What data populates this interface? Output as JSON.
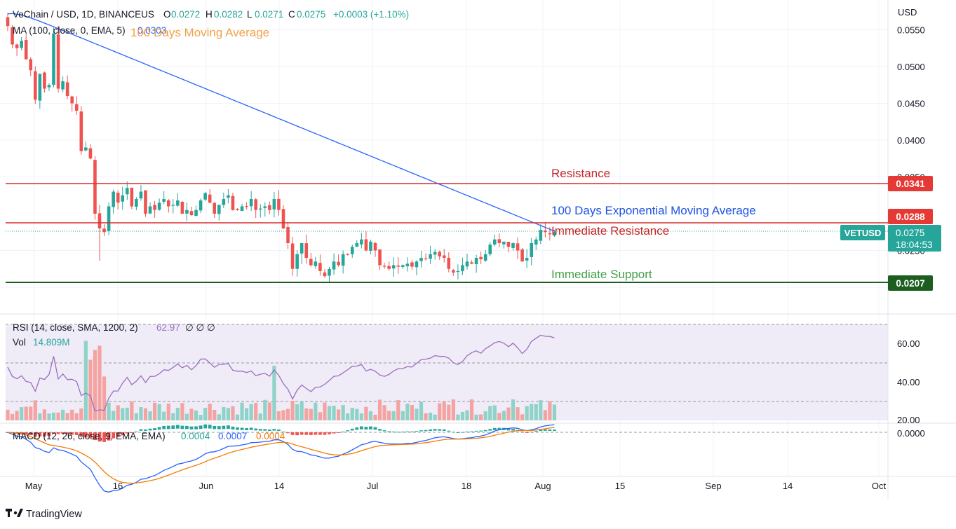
{
  "header": {
    "symbol": "VeChain / USD, 1D, BINANCEUS",
    "o_label": "O",
    "o_value": "0.0272",
    "h_label": "H",
    "h_value": "0.0282",
    "l_label": "L",
    "l_value": "0.0271",
    "c_label": "C",
    "c_value": "0.0275",
    "change": "+0.0003 (+1.10%)",
    "ma_label": "MA (100, close, 0, EMA, 5)",
    "ma_value": "0.0303",
    "ma_annotation": "100 Days Moving Average"
  },
  "currency": "USD",
  "annotations": {
    "resistance": "Resistance",
    "ema": "100 Days Exponential Moving Average",
    "immediate_resistance": "Immediate Resistance",
    "immediate_support": "Immediate Support"
  },
  "price_badges": {
    "resistance": "0.0341",
    "immediate_resistance": "0.0288",
    "support": "0.0207",
    "ticker": "VETUSD",
    "last": "0.0275",
    "countdown": "18:04:53"
  },
  "colors": {
    "up": "#26a69a",
    "down": "#ef5350",
    "ema": "#2962ff",
    "resistance": "#d32f2f",
    "support": "#1b5e20",
    "rsi": "#9c6fbf",
    "macd": "#2962ff",
    "signal": "#f57c00",
    "ann_resistance": "#c62828",
    "ann_ema": "#1e53e5",
    "ann_support": "#43a047",
    "ann_orange": "#f2a14a"
  },
  "rsi": {
    "label": "RSI (14, close, SMA, 1200, 2)",
    "value": "62.97",
    "extra": "∅ ∅ ∅",
    "vol_label": "Vol",
    "vol_value": "14.809M",
    "ticks": [
      "60.00",
      "40.00",
      "20.00"
    ]
  },
  "macd": {
    "label": "MACD (12, 26, close, 9, EMA, EMA)",
    "hist": "0.0004",
    "macd": "0.0007",
    "signal": "0.0004",
    "tick": "0.0000"
  },
  "x_axis": [
    "May",
    "16",
    "Jun",
    "14",
    "Jul",
    "18",
    "Aug",
    "15",
    "Sep",
    "14",
    "Oct"
  ],
  "brand": "TradingView",
  "chart_data": [
    {
      "type": "candlestick",
      "title": "VeChain / USD, 1D, BINANCEUS",
      "y_axis_ticks": [
        "0.0550",
        "0.0500",
        "0.0450",
        "0.0400",
        "0.0350",
        "0.0250",
        "0.0200"
      ],
      "horizontal_levels": [
        {
          "name": "Resistance",
          "value": 0.0341
        },
        {
          "name": "Immediate Resistance",
          "value": 0.0288
        },
        {
          "name": "Immediate Support",
          "value": 0.0207
        }
      ],
      "last_close": 0.0275,
      "close_series": [
        0.0555,
        0.053,
        0.0525,
        0.0535,
        0.051,
        0.0495,
        0.0455,
        0.049,
        0.047,
        0.0475,
        0.0545,
        0.047,
        0.048,
        0.046,
        0.045,
        0.044,
        0.0385,
        0.039,
        0.0375,
        0.03,
        0.028,
        0.0275,
        0.031,
        0.033,
        0.0315,
        0.0325,
        0.0335,
        0.031,
        0.032,
        0.033,
        0.03,
        0.031,
        0.0305,
        0.0315,
        0.032,
        0.031,
        0.0312,
        0.0318,
        0.03,
        0.0305,
        0.0298,
        0.0305,
        0.0318,
        0.0328,
        0.0315,
        0.03,
        0.0312,
        0.032,
        0.0325,
        0.0305,
        0.0305,
        0.031,
        0.031,
        0.032,
        0.0305,
        0.0307,
        0.031,
        0.0305,
        0.032,
        0.0305,
        0.028,
        0.026,
        0.0225,
        0.0245,
        0.026,
        0.024,
        0.023,
        0.0235,
        0.0222,
        0.0215,
        0.0225,
        0.0235,
        0.023,
        0.0245,
        0.0245,
        0.0255,
        0.026,
        0.0265,
        0.025,
        0.0262,
        0.025,
        0.023,
        0.0228,
        0.0225,
        0.023,
        0.0228,
        0.023,
        0.0232,
        0.0228,
        0.0235,
        0.024,
        0.0238,
        0.0245,
        0.0248,
        0.0242,
        0.024,
        0.0225,
        0.022,
        0.0222,
        0.023,
        0.0235,
        0.0232,
        0.024,
        0.0238,
        0.0245,
        0.0258,
        0.0265,
        0.026,
        0.0262,
        0.0255,
        0.026,
        0.025,
        0.0235,
        0.024,
        0.026,
        0.0265,
        0.0278,
        0.0275,
        0.0272,
        0.0275
      ]
    },
    {
      "type": "line",
      "name": "RSI",
      "y_axis_ticks": [
        60,
        40,
        20
      ],
      "last_value": 62.97
    },
    {
      "type": "line",
      "name": "MACD",
      "y_axis_ticks": [
        0.0
      ],
      "series": [
        {
          "name": "MACD",
          "last_value": 0.0007
        },
        {
          "name": "Signal",
          "last_value": 0.0004
        },
        {
          "name": "Histogram",
          "last_value": 0.0004
        }
      ]
    }
  ]
}
